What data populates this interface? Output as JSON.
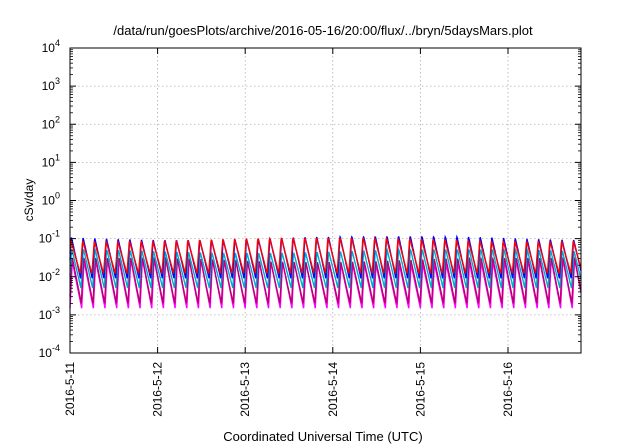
{
  "chart_data": {
    "type": "line",
    "title": "/data/run/goesPlots/archive/2016-05-16/20:00/flux/../bryn/5daysMars.plot",
    "xlabel": "Coordinated Universal Time (UTC)",
    "ylabel": "cSv/day",
    "y_scale": "log",
    "ylim": [
      0.0001,
      10000
    ],
    "x_range_days": [
      "2016-05-11",
      "2016-05-16 20:00"
    ],
    "y_ticks": [
      {
        "value": 0.0001,
        "base": "10",
        "exp": "-4"
      },
      {
        "value": 0.001,
        "base": "10",
        "exp": "-3"
      },
      {
        "value": 0.01,
        "base": "10",
        "exp": "-2"
      },
      {
        "value": 0.1,
        "base": "10",
        "exp": "-1"
      },
      {
        "value": 1,
        "base": "10",
        "exp": "0"
      },
      {
        "value": 10,
        "base": "10",
        "exp": "1"
      },
      {
        "value": 100,
        "base": "10",
        "exp": "2"
      },
      {
        "value": 1000,
        "base": "10",
        "exp": "3"
      },
      {
        "value": 10000,
        "base": "10",
        "exp": "4"
      }
    ],
    "x_ticks": [
      {
        "date": "2016-05-11",
        "label": "2016-5-11"
      },
      {
        "date": "2016-05-12",
        "label": "2016-5-12"
      },
      {
        "date": "2016-05-13",
        "label": "2016-5-13"
      },
      {
        "date": "2016-05-14",
        "label": "2016-5-14"
      },
      {
        "date": "2016-05-15",
        "label": "2016-5-15"
      },
      {
        "date": "2016-05-16",
        "label": "2016-5-16"
      }
    ],
    "grid": true,
    "legend": "none",
    "oscillation_period_hours": 3.2,
    "series": [
      {
        "color": "#ff00ff",
        "min": 0.0015,
        "max": 0.025
      },
      {
        "color": "#b8006e",
        "min": 0.002,
        "max": 0.03
      },
      {
        "color": "#00aacc",
        "min": 0.005,
        "max": 0.05
      },
      {
        "color": "#0000ff",
        "min": 0.009,
        "max": 0.11
      },
      {
        "color": "#ff0000",
        "min": 0.012,
        "max": 0.1
      }
    ]
  }
}
